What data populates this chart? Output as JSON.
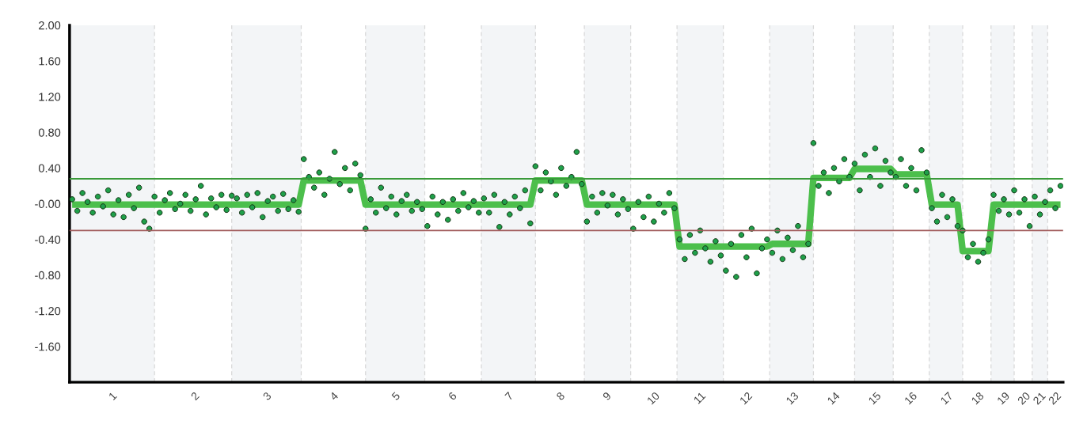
{
  "chart_data": {
    "type": "scatter",
    "ylim": [
      -2,
      2
    ],
    "categories": [
      null,
      null,
      null,
      null,
      null,
      null,
      null,
      null,
      "1",
      null,
      null,
      null,
      null,
      null,
      null,
      null,
      null,
      null,
      null,
      null,
      null,
      null,
      null,
      null,
      "2",
      null,
      null,
      null,
      null,
      null,
      null,
      null,
      null,
      null,
      null,
      null,
      null,
      null,
      "3",
      null,
      null,
      null,
      null,
      null,
      null,
      null,
      null,
      null,
      null,
      null,
      null,
      "4",
      null,
      null,
      null,
      null,
      null,
      null,
      null,
      null,
      null,
      null,
      null,
      "5",
      null,
      null,
      null,
      null,
      null,
      null,
      null,
      null,
      null,
      null,
      "6",
      null,
      null,
      null,
      null,
      null,
      null,
      null,
      null,
      null,
      null,
      "7",
      null,
      null,
      null,
      null,
      null,
      null,
      null,
      null,
      null,
      "8",
      null,
      null,
      null,
      null,
      null,
      null,
      null,
      null,
      "9",
      null,
      null,
      null,
      null,
      null,
      null,
      null,
      null,
      "10",
      null,
      null,
      null,
      null,
      null,
      null,
      null,
      null,
      "11",
      null,
      null,
      null,
      null,
      null,
      null,
      null,
      null,
      "12",
      null,
      null,
      null,
      null,
      null,
      null,
      null,
      null,
      "13",
      null,
      null,
      null,
      null,
      null,
      null,
      null,
      "14",
      null,
      null,
      null,
      null,
      null,
      null,
      null,
      "15",
      null,
      null,
      null,
      null,
      null,
      null,
      "16",
      null,
      null,
      null,
      null,
      null,
      null,
      "17",
      null,
      null,
      null,
      null,
      null,
      "18",
      null,
      null,
      null,
      null,
      "19",
      null,
      null,
      null,
      "20",
      null,
      null,
      "21",
      null,
      null,
      "22",
      null
    ],
    "yticks": [
      {
        "value": 2,
        "label": "2.00"
      },
      {
        "value": 1.6,
        "label": "1.60"
      },
      {
        "value": 1.2,
        "label": "1.20"
      },
      {
        "value": 0.8,
        "label": "0.80"
      },
      {
        "value": 0.4,
        "label": "0.40"
      },
      {
        "value": 0,
        "label": "-0.00"
      },
      {
        "value": -0.4,
        "label": "-0.40"
      },
      {
        "value": -0.8,
        "label": "-0.80"
      },
      {
        "value": -1.2,
        "label": "-1.20"
      },
      {
        "value": -1.6,
        "label": "-1.60"
      }
    ],
    "grid": false,
    "ref_lines": [
      {
        "axis": "y",
        "value": 0.28,
        "color": "#3a9a3a",
        "line_style": "solid"
      },
      {
        "axis": "y",
        "value": -0.3,
        "color": "#a05a5a",
        "line_style": "solid"
      }
    ],
    "series": [
      {
        "type": "line",
        "color": "#4cbf4c",
        "line_style": "solid",
        "values": [
          -0.01,
          -0.01,
          -0.01,
          -0.01,
          -0.01,
          -0.01,
          -0.01,
          -0.01,
          -0.01,
          -0.01,
          -0.01,
          -0.01,
          -0.01,
          -0.01,
          -0.01,
          -0.01,
          -0.01,
          -0.01,
          -0.01,
          -0.01,
          -0.01,
          -0.01,
          -0.01,
          -0.01,
          -0.01,
          -0.01,
          -0.01,
          -0.01,
          -0.01,
          -0.01,
          -0.01,
          -0.01,
          -0.01,
          -0.01,
          -0.01,
          -0.01,
          -0.01,
          -0.01,
          -0.01,
          -0.01,
          -0.01,
          -0.01,
          -0.01,
          -0.01,
          -0.01,
          0.26,
          0.26,
          0.26,
          0.26,
          0.26,
          0.26,
          0.26,
          0.26,
          0.26,
          0.26,
          0.26,
          0.26,
          -0.01,
          -0.01,
          -0.01,
          -0.01,
          -0.01,
          -0.01,
          -0.01,
          -0.01,
          -0.01,
          -0.01,
          -0.01,
          -0.01,
          -0.01,
          -0.01,
          -0.01,
          -0.01,
          -0.01,
          -0.01,
          -0.01,
          -0.01,
          -0.01,
          -0.01,
          -0.01,
          -0.01,
          -0.01,
          -0.01,
          -0.01,
          -0.01,
          -0.01,
          -0.01,
          -0.01,
          -0.01,
          -0.01,
          0.26,
          0.26,
          0.26,
          0.26,
          0.26,
          0.26,
          0.26,
          0.26,
          0.26,
          0.26,
          -0.01,
          -0.01,
          -0.01,
          -0.01,
          -0.01,
          -0.01,
          -0.01,
          -0.01,
          -0.01,
          -0.01,
          -0.01,
          -0.01,
          -0.01,
          -0.01,
          -0.01,
          -0.01,
          -0.01,
          -0.01,
          -0.48,
          -0.48,
          -0.48,
          -0.48,
          -0.48,
          -0.48,
          -0.48,
          -0.48,
          -0.48,
          -0.48,
          -0.48,
          -0.48,
          -0.48,
          -0.48,
          -0.48,
          -0.48,
          -0.48,
          -0.48,
          -0.45,
          -0.45,
          -0.45,
          -0.45,
          -0.45,
          -0.45,
          -0.45,
          -0.45,
          0.29,
          0.29,
          0.29,
          0.29,
          0.29,
          0.29,
          0.29,
          0.29,
          0.39,
          0.39,
          0.39,
          0.39,
          0.39,
          0.39,
          0.39,
          0.39,
          0.33,
          0.33,
          0.33,
          0.33,
          0.33,
          0.33,
          0.33,
          -0.01,
          -0.01,
          -0.01,
          -0.01,
          -0.01,
          -0.01,
          -0.53,
          -0.53,
          -0.53,
          -0.53,
          -0.53,
          -0.53,
          -0.01,
          -0.01,
          -0.01,
          -0.01,
          -0.01,
          -0.01,
          -0.01,
          -0.01,
          -0.01,
          -0.01,
          -0.01,
          -0.01,
          -0.01,
          -0.01
        ]
      },
      {
        "color": "#1fa04a",
        "marker": "circle",
        "values": [
          0.05,
          -0.08,
          0.12,
          0.02,
          -0.1,
          0.08,
          -0.03,
          0.15,
          -0.12,
          0.04,
          -0.15,
          0.1,
          -0.05,
          0.18,
          -0.2,
          -0.28,
          0.08,
          -0.1,
          0.04,
          0.12,
          -0.06,
          0.0,
          0.1,
          -0.08,
          0.05,
          0.2,
          -0.12,
          0.06,
          -0.04,
          0.1,
          -0.07,
          0.09,
          0.06,
          -0.1,
          0.1,
          -0.04,
          0.12,
          -0.15,
          0.03,
          0.08,
          -0.08,
          0.11,
          -0.06,
          0.04,
          -0.09,
          0.5,
          0.3,
          0.18,
          0.35,
          0.1,
          0.28,
          0.58,
          0.22,
          0.4,
          0.15,
          0.45,
          0.32,
          -0.28,
          0.05,
          -0.1,
          0.18,
          -0.05,
          0.08,
          -0.12,
          0.03,
          0.1,
          -0.08,
          0.02,
          -0.06,
          -0.25,
          0.08,
          -0.12,
          0.02,
          -0.18,
          0.05,
          -0.08,
          0.12,
          -0.04,
          0.03,
          -0.1,
          0.06,
          -0.1,
          0.1,
          -0.26,
          0.02,
          -0.12,
          0.08,
          -0.05,
          0.15,
          -0.22,
          0.42,
          0.15,
          0.35,
          0.25,
          0.1,
          0.4,
          0.2,
          0.3,
          0.58,
          0.22,
          -0.2,
          0.08,
          -0.1,
          0.12,
          -0.02,
          0.1,
          -0.12,
          0.05,
          -0.06,
          -0.28,
          0.02,
          -0.15,
          0.08,
          -0.2,
          0.0,
          -0.1,
          0.12,
          -0.05,
          -0.4,
          -0.62,
          -0.35,
          -0.55,
          -0.3,
          -0.5,
          -0.65,
          -0.42,
          -0.58,
          -0.75,
          -0.45,
          -0.82,
          -0.35,
          -0.6,
          -0.28,
          -0.78,
          -0.5,
          -0.4,
          -0.55,
          -0.3,
          -0.62,
          -0.38,
          -0.52,
          -0.25,
          -0.6,
          -0.45,
          0.68,
          0.2,
          0.35,
          0.12,
          0.4,
          0.25,
          0.5,
          0.3,
          0.45,
          0.15,
          0.55,
          0.3,
          0.62,
          0.2,
          0.48,
          0.35,
          0.3,
          0.5,
          0.2,
          0.4,
          0.15,
          0.6,
          0.35,
          -0.05,
          -0.2,
          0.1,
          -0.15,
          0.05,
          -0.25,
          -0.3,
          -0.6,
          -0.45,
          -0.65,
          -0.55,
          -0.4,
          0.1,
          -0.08,
          0.05,
          -0.12,
          0.15,
          -0.1,
          0.05,
          -0.25,
          0.08,
          -0.12,
          0.02,
          0.15,
          -0.05,
          0.2
        ]
      }
    ]
  }
}
